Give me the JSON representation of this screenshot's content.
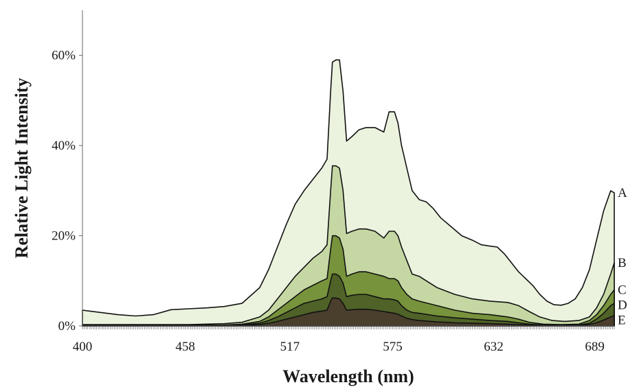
{
  "chart_data": {
    "type": "area",
    "stacked": false,
    "xlabel": "Wavelength (nm)",
    "ylabel": "Relative Light Intensity",
    "xlim": [
      400,
      700
    ],
    "ylim": [
      0,
      70
    ],
    "x_ticks": [
      400,
      458,
      517,
      575,
      632,
      689
    ],
    "x_tick_labels": [
      "400",
      "458",
      "517",
      "575",
      "632",
      "689"
    ],
    "y_ticks": [
      0,
      20,
      40,
      60
    ],
    "y_tick_labels": [
      "0%",
      "20%",
      "40%",
      "60%"
    ],
    "grid": false,
    "legend": "series labels at right end of each curve",
    "series": [
      {
        "name": "A",
        "color": "#ebf2de",
        "x": [
          400,
          410,
          420,
          430,
          440,
          450,
          460,
          470,
          480,
          490,
          500,
          505,
          510,
          515,
          520,
          525,
          530,
          535,
          538,
          540,
          541,
          543,
          545,
          547,
          549,
          552,
          556,
          560,
          565,
          570,
          573,
          576,
          578,
          580,
          583,
          586,
          590,
          594,
          598,
          602,
          608,
          614,
          620,
          625,
          630,
          634,
          638,
          642,
          646,
          650,
          654,
          658,
          662,
          666,
          670,
          674,
          678,
          682,
          686,
          690,
          694,
          698,
          700
        ],
        "y": [
          3.5,
          3.0,
          2.5,
          2.2,
          2.5,
          3.6,
          3.8,
          4.0,
          4.3,
          5.0,
          8.5,
          12.5,
          17.5,
          22.5,
          27.0,
          30.0,
          32.5,
          35.0,
          37.0,
          52.0,
          58.5,
          59.0,
          59.0,
          52.0,
          41.0,
          42.0,
          43.5,
          44.0,
          44.0,
          43.0,
          47.5,
          47.5,
          45.0,
          40.0,
          35.0,
          30.0,
          28.0,
          27.5,
          26.0,
          24.0,
          22.0,
          20.0,
          19.0,
          18.0,
          17.7,
          17.5,
          16.0,
          14.0,
          12.0,
          10.5,
          9.0,
          7.0,
          5.5,
          4.7,
          4.6,
          5.0,
          6.0,
          8.5,
          12.5,
          19.0,
          25.5,
          30.0,
          29.5
        ]
      },
      {
        "name": "B",
        "color": "#c5d8a4",
        "x": [
          400,
          420,
          440,
          460,
          480,
          490,
          500,
          505,
          510,
          515,
          520,
          525,
          530,
          535,
          538,
          540,
          541,
          543,
          545,
          547,
          549,
          552,
          556,
          560,
          565,
          570,
          573,
          576,
          578,
          580,
          583,
          586,
          590,
          594,
          600,
          610,
          620,
          630,
          640,
          646,
          652,
          658,
          665,
          672,
          680,
          686,
          690,
          694,
          698,
          700
        ],
        "y": [
          0.3,
          0.3,
          0.3,
          0.3,
          0.5,
          0.8,
          2.0,
          3.5,
          6.0,
          8.5,
          11.0,
          13.0,
          15.0,
          16.5,
          18.0,
          30.0,
          35.5,
          35.5,
          35.0,
          30.0,
          20.5,
          21.0,
          21.5,
          21.5,
          21.0,
          19.5,
          21.0,
          21.0,
          20.0,
          17.5,
          14.5,
          11.5,
          11.0,
          10.0,
          8.5,
          7.0,
          6.0,
          5.5,
          5.2,
          4.5,
          3.2,
          2.0,
          1.2,
          1.0,
          1.2,
          2.0,
          4.0,
          7.0,
          11.5,
          14.0
        ]
      },
      {
        "name": "C",
        "color": "#77933c",
        "x": [
          400,
          440,
          480,
          490,
          500,
          505,
          510,
          515,
          520,
          525,
          530,
          535,
          538,
          540,
          541,
          543,
          545,
          547,
          549,
          552,
          556,
          560,
          565,
          570,
          573,
          576,
          578,
          580,
          583,
          586,
          590,
          600,
          610,
          620,
          630,
          640,
          646,
          652,
          660,
          670,
          680,
          686,
          690,
          694,
          698,
          700
        ],
        "y": [
          0.15,
          0.15,
          0.2,
          0.4,
          1.0,
          2.0,
          3.5,
          5.0,
          6.5,
          8.0,
          9.0,
          10.0,
          10.5,
          17.0,
          20.0,
          20.0,
          19.5,
          17.0,
          11.0,
          11.5,
          12.0,
          12.0,
          11.5,
          11.0,
          10.5,
          10.5,
          10.0,
          8.5,
          7.0,
          6.0,
          5.5,
          4.5,
          3.5,
          2.8,
          2.5,
          2.0,
          1.5,
          0.8,
          0.4,
          0.3,
          0.4,
          1.2,
          2.5,
          4.5,
          7.0,
          8.0
        ]
      },
      {
        "name": "D",
        "color": "#4f6228",
        "x": [
          400,
          480,
          490,
          500,
          505,
          510,
          515,
          520,
          525,
          530,
          535,
          538,
          540,
          541,
          543,
          545,
          547,
          549,
          552,
          556,
          560,
          565,
          570,
          573,
          576,
          578,
          580,
          583,
          586,
          590,
          600,
          610,
          620,
          630,
          640,
          646,
          652,
          660,
          670,
          680,
          686,
          690,
          694,
          698,
          700
        ],
        "y": [
          0.1,
          0.1,
          0.2,
          0.6,
          1.2,
          2.0,
          3.0,
          4.0,
          5.0,
          5.5,
          6.0,
          6.5,
          10.0,
          11.5,
          11.5,
          11.0,
          9.5,
          6.5,
          6.8,
          7.0,
          7.0,
          6.5,
          6.0,
          6.0,
          5.8,
          5.5,
          4.5,
          3.5,
          3.0,
          2.8,
          2.2,
          1.8,
          1.5,
          1.2,
          1.0,
          0.7,
          0.4,
          0.2,
          0.15,
          0.2,
          0.6,
          1.5,
          2.8,
          4.5,
          5.0
        ]
      },
      {
        "name": "E",
        "color": "#4a3e2c",
        "x": [
          400,
          480,
          490,
          500,
          505,
          510,
          515,
          520,
          525,
          530,
          535,
          538,
          540,
          541,
          543,
          545,
          547,
          549,
          552,
          556,
          560,
          565,
          570,
          573,
          576,
          578,
          580,
          583,
          586,
          590,
          600,
          610,
          620,
          630,
          640,
          646,
          652,
          660,
          670,
          680,
          686,
          690,
          694,
          698,
          700
        ],
        "y": [
          0.05,
          0.05,
          0.1,
          0.3,
          0.6,
          1.0,
          1.5,
          2.0,
          2.5,
          3.0,
          3.3,
          3.5,
          5.5,
          6.2,
          6.2,
          6.0,
          5.0,
          3.5,
          3.6,
          3.7,
          3.7,
          3.5,
          3.2,
          3.0,
          2.8,
          2.6,
          2.2,
          1.7,
          1.4,
          1.2,
          0.9,
          0.7,
          0.6,
          0.5,
          0.4,
          0.3,
          0.2,
          0.1,
          0.05,
          0.1,
          0.3,
          0.7,
          1.3,
          2.0,
          2.3
        ]
      }
    ],
    "style": {
      "outline_color": "#111111",
      "axis_color": "#666666"
    }
  }
}
